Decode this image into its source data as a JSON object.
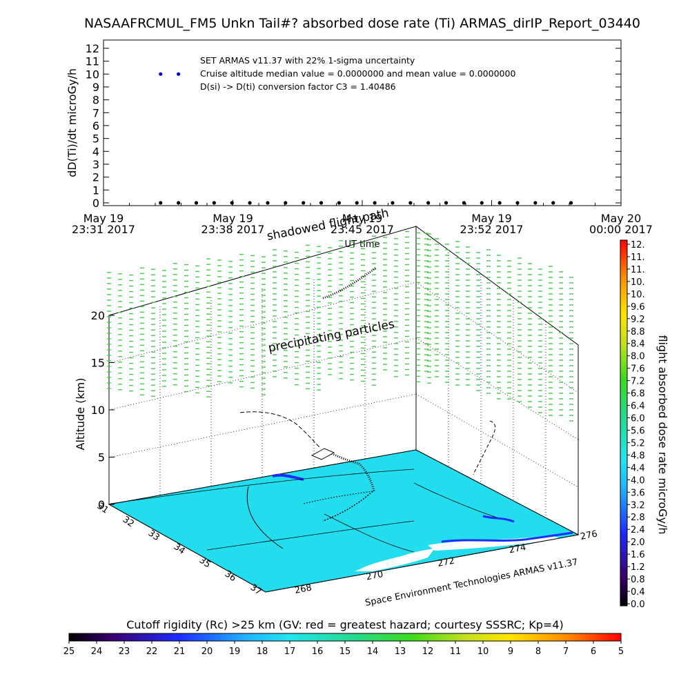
{
  "chart_data": [
    {
      "type": "scatter",
      "title": "NASAAFRCMUL_FM5 Unkn Tail#? absorbed dose rate (Ti) ARMAS_dirIP_Report_03440",
      "ylabel": "dD(Ti)/dt microGy/h",
      "xlabel": "UT time",
      "ylim": [
        0,
        12
      ],
      "yticks": [
        "0",
        "1",
        "2",
        "3",
        "4",
        "5",
        "6",
        "7",
        "8",
        "9",
        "10",
        "11",
        "12"
      ],
      "xticks": [
        {
          "top": "May 19",
          "bottom": "23:31 2017"
        },
        {
          "top": "May 19",
          "bottom": "23:38 2017"
        },
        {
          "top": "May 19",
          "bottom": "23:45 2017"
        },
        {
          "top": "May 19",
          "bottom": "23:52 2017"
        },
        {
          "top": "May 20",
          "bottom": "00:00 2017"
        }
      ],
      "xlim_minutes": [
        0,
        29
      ],
      "annotations": [
        "SET ARMAS v11.37 with 22% 1-sigma uncertainty",
        "Cruise altitude median value = 0.0000000 and mean value = 0.0000000",
        "D(si) -> D(ti) conversion factor C3 = 1.40486"
      ],
      "series": [
        {
          "color": "#0000cc",
          "x_minutes": [
            3.2,
            4.2
          ],
          "y": [
            10,
            10
          ]
        },
        {
          "color": "#000000",
          "x_minutes": [
            3.2,
            4.2,
            5.2,
            6.2,
            7.2,
            8.2,
            9.2,
            10.2,
            11.2,
            12.2,
            13.2,
            14.2,
            15.2,
            16.2,
            17.2,
            18.2,
            19.2,
            20.2,
            21.2,
            22.2,
            23.2,
            24.2,
            25.2,
            26.2
          ],
          "y": [
            0,
            0,
            0,
            0,
            0,
            0,
            0,
            0,
            0,
            0,
            0,
            0,
            0,
            0,
            0,
            0,
            0,
            0,
            0,
            0,
            0,
            0,
            0,
            0
          ]
        }
      ],
      "grid": false
    },
    {
      "type": "3d-flight-path",
      "zlabel": "Altitude (km)",
      "zlim": [
        0,
        20
      ],
      "zticks": [
        "0",
        "5",
        "10",
        "15",
        "20"
      ],
      "lat_ticks": [
        "31",
        "32",
        "33",
        "34",
        "35",
        "36",
        "37"
      ],
      "lon_ticks": [
        "268",
        "270",
        "272",
        "274",
        "276"
      ],
      "labels": [
        "shadowed flight path",
        "precipitating particles"
      ],
      "credit": "Space Environment Technologies ARMAS v11.37",
      "colorbar": {
        "label": "flight absorbed dose rate microGy/h",
        "ticks": [
          "0.0",
          "0.4",
          "0.8",
          "1.2",
          "1.6",
          "2.0",
          "2.4",
          "2.8",
          "3.2",
          "3.6",
          "4.0",
          "4.4",
          "4.8",
          "5.2",
          "5.6",
          "6.0",
          "6.4",
          "6.8",
          "7.2",
          "7.6",
          "8.0",
          "8.4",
          "8.8",
          "9.2",
          "9.6",
          "10.",
          "10.",
          "11.",
          "11.",
          "12."
        ]
      }
    },
    {
      "type": "colorbar",
      "title": "Cutoff rigidity (Rc) >25 km (GV: red = greatest hazard; courtesy SSSRC; Kp=4)",
      "ticks": [
        "25",
        "24",
        "23",
        "22",
        "21",
        "20",
        "19",
        "18",
        "17",
        "16",
        "15",
        "14",
        "13",
        "12",
        "11",
        "10",
        "9",
        "8",
        "7",
        "6",
        "5"
      ]
    }
  ]
}
